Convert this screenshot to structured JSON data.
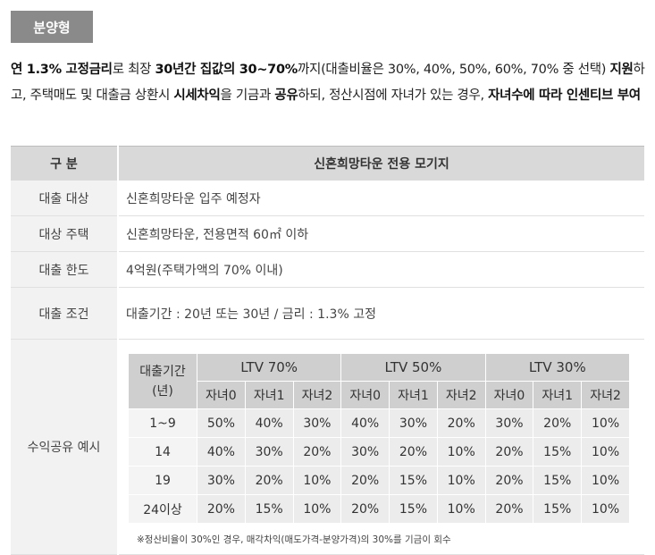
{
  "badge": "분양형",
  "intro": {
    "parts": [
      {
        "t": "연 1.3% 고정금리",
        "b": true
      },
      {
        "t": "로 최장 ",
        "b": false
      },
      {
        "t": "30년간 집값의 30~70%",
        "b": true
      },
      {
        "t": "까지(대출비율은 30%, 40%, 50%, 60%, 70% 중 선택) ",
        "b": false
      },
      {
        "t": "지원",
        "b": true
      },
      {
        "t": "하고, 주택매도 및 대출금 상환시 ",
        "b": false
      },
      {
        "t": "시세차익",
        "b": true
      },
      {
        "t": "을 기금과 ",
        "b": false
      },
      {
        "t": "공유",
        "b": true
      },
      {
        "t": "하되, 정산시점에 자녀가 있는 경우, ",
        "b": false
      },
      {
        "t": "자녀수에 따라 인센티브 부여",
        "b": true
      }
    ]
  },
  "table": {
    "header": {
      "col1": "구 분",
      "col2": "신혼희망타운 전용 모기지"
    },
    "rows": [
      {
        "label": "대출 대상",
        "value": "신혼희망타운 입주 예정자"
      },
      {
        "label": "대상 주택",
        "value": "신혼희망타운, 전용면적 60㎡ 이하"
      },
      {
        "label": "대출 한도",
        "value": "4억원(주택가액의 70% 이내)"
      },
      {
        "label": "대출 조건",
        "value": "대출기간 : 20년 또는 30년 / 금리 : 1.3% 고정"
      }
    ],
    "example_label": "수익공유 예시"
  },
  "example": {
    "period_header_1": "대출기간",
    "period_header_2": "(년)",
    "groups": [
      "LTV 70%",
      "LTV 50%",
      "LTV 30%"
    ],
    "subheaders": [
      "자녀0",
      "자녀1",
      "자녀2",
      "자녀0",
      "자녀1",
      "자녀2",
      "자녀0",
      "자녀1",
      "자녀2"
    ],
    "rows": [
      {
        "period": "1~9",
        "values": [
          "50%",
          "40%",
          "30%",
          "40%",
          "30%",
          "20%",
          "30%",
          "20%",
          "10%"
        ]
      },
      {
        "period": "14",
        "values": [
          "40%",
          "30%",
          "20%",
          "30%",
          "20%",
          "10%",
          "20%",
          "15%",
          "10%"
        ]
      },
      {
        "period": "19",
        "values": [
          "30%",
          "20%",
          "10%",
          "20%",
          "15%",
          "10%",
          "20%",
          "15%",
          "10%"
        ]
      },
      {
        "period": "24이상",
        "values": [
          "20%",
          "15%",
          "10%",
          "20%",
          "15%",
          "10%",
          "20%",
          "15%",
          "10%"
        ]
      }
    ],
    "note": "※정산비율이 30%인 경우, 매각차익(매도가격-분양가격)의 30%를 기금이 회수"
  }
}
